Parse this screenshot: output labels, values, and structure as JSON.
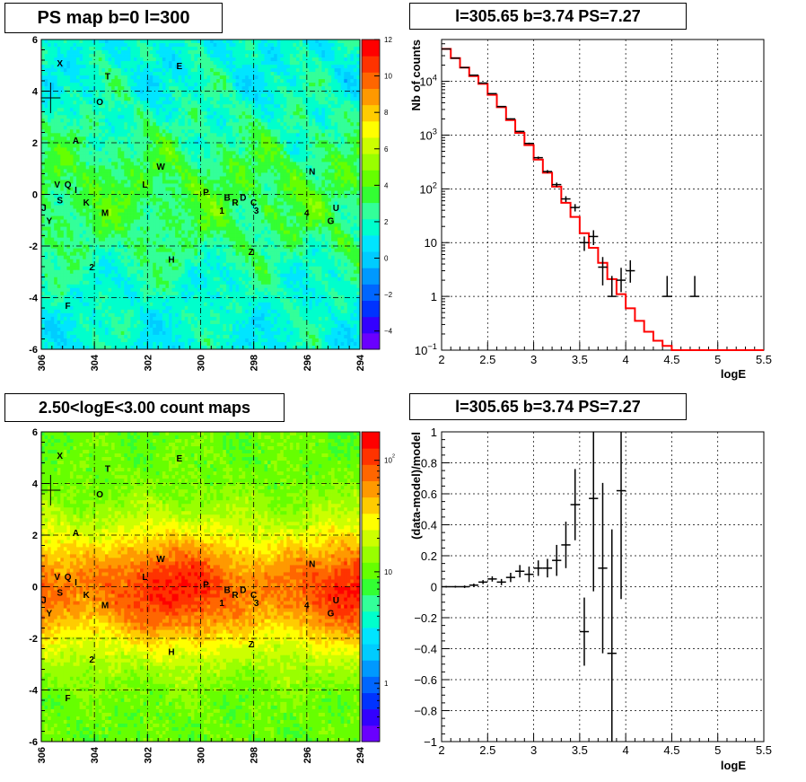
{
  "chart_data": [
    {
      "type": "heatmap",
      "title": "PS map b=0 l=300",
      "xlim": [
        306,
        294
      ],
      "ylim": [
        -6,
        6
      ],
      "x_ticks": [
        "306",
        "304",
        "302",
        "300",
        "298",
        "296",
        "294"
      ],
      "y_ticks": [
        "6",
        "4",
        "2",
        "0",
        "-2",
        "-4",
        "-6"
      ],
      "colorbar": {
        "range": [
          -5,
          12
        ],
        "scale": "linear",
        "ticks": [
          "12",
          "10",
          "8",
          "6",
          "4",
          "2",
          "0",
          "-2",
          "-4"
        ],
        "palette": [
          "#6a00ff",
          "#3300ff",
          "#0033ff",
          "#0066ff",
          "#0099ff",
          "#00ccff",
          "#00e5ff",
          "#00ffcc",
          "#33ff99",
          "#33ff33",
          "#66ff00",
          "#99ff00",
          "#ccff00",
          "#ffff00",
          "#ffcc00",
          "#ff9900",
          "#ff6600",
          "#ff3300",
          "#ff0000"
        ]
      },
      "grid": true,
      "marker_cross": {
        "l": 305.65,
        "b": 3.74
      },
      "sources": [
        {
          "label": "X",
          "l": 305.3,
          "b": 5.1
        },
        {
          "label": "E",
          "l": 300.8,
          "b": 5.0
        },
        {
          "label": "T",
          "l": 303.5,
          "b": 4.6
        },
        {
          "label": "O",
          "l": 303.8,
          "b": 3.6
        },
        {
          "label": "A",
          "l": 304.7,
          "b": 2.1
        },
        {
          "label": "W",
          "l": 301.5,
          "b": 1.1
        },
        {
          "label": "N",
          "l": 295.8,
          "b": 0.9
        },
        {
          "label": "L",
          "l": 302.1,
          "b": 0.4
        },
        {
          "label": "V",
          "l": 305.4,
          "b": 0.4
        },
        {
          "label": "Q",
          "l": 305.0,
          "b": 0.4
        },
        {
          "label": "I",
          "l": 304.7,
          "b": 0.2
        },
        {
          "label": "P",
          "l": 299.8,
          "b": 0.1
        },
        {
          "label": "B",
          "l": 299.0,
          "b": -0.1
        },
        {
          "label": "R",
          "l": 298.7,
          "b": -0.3
        },
        {
          "label": "D",
          "l": 298.4,
          "b": -0.1
        },
        {
          "label": "C",
          "l": 298.0,
          "b": -0.3
        },
        {
          "label": "S",
          "l": 305.3,
          "b": -0.2
        },
        {
          "label": "K",
          "l": 304.3,
          "b": -0.3
        },
        {
          "label": "J",
          "l": 305.9,
          "b": -0.5
        },
        {
          "label": "1",
          "l": 299.2,
          "b": -0.6
        },
        {
          "label": "3",
          "l": 297.9,
          "b": -0.6
        },
        {
          "label": "U",
          "l": 294.9,
          "b": -0.5
        },
        {
          "label": "M",
          "l": 303.6,
          "b": -0.7
        },
        {
          "label": "4",
          "l": 296.0,
          "b": -0.7
        },
        {
          "label": "Y",
          "l": 305.7,
          "b": -1.0
        },
        {
          "label": "G",
          "l": 295.1,
          "b": -1.0
        },
        {
          "label": "Z",
          "l": 298.1,
          "b": -2.2
        },
        {
          "label": "H",
          "l": 301.1,
          "b": -2.5
        },
        {
          "label": "2",
          "l": 304.1,
          "b": -2.8
        },
        {
          "label": "F",
          "l": 305.0,
          "b": -4.3
        }
      ]
    },
    {
      "type": "line",
      "title": "l=305.65 b=3.74 PS=7.27",
      "xlabel": "logE",
      "ylabel": "Nb of counts",
      "xlim": [
        2,
        5.5
      ],
      "ylim": [
        0.1,
        60000
      ],
      "y_scale": "log",
      "x_ticks": [
        "2",
        "2.5",
        "3",
        "3.5",
        "4",
        "4.5",
        "5",
        "5.5"
      ],
      "y_ticks": [
        {
          "v": 0.1,
          "base": "10",
          "exp": "−1"
        },
        {
          "v": 1,
          "base": "1",
          "exp": ""
        },
        {
          "v": 10,
          "base": "10",
          "exp": ""
        },
        {
          "v": 100,
          "base": "10",
          "exp": "2"
        },
        {
          "v": 1000,
          "base": "10",
          "exp": "3"
        },
        {
          "v": 10000,
          "base": "10",
          "exp": "4"
        }
      ],
      "grid": true,
      "bin_width": 0.1,
      "series": [
        {
          "kind": "model-histogram",
          "color": "#ff0000",
          "x": [
            2.0,
            2.1,
            2.2,
            2.3,
            2.4,
            2.5,
            2.6,
            2.7,
            2.8,
            2.9,
            3.0,
            3.1,
            3.2,
            3.3,
            3.4,
            3.5,
            3.6,
            3.7,
            3.8,
            3.9,
            4.0,
            4.1,
            4.2,
            4.3,
            4.4,
            4.5,
            4.6,
            4.7,
            4.8,
            4.9,
            5.0,
            5.1,
            5.2,
            5.3,
            5.4
          ],
          "values": [
            40000,
            27000,
            18000,
            12500,
            9000,
            5600,
            3300,
            1900,
            1100,
            650,
            350,
            200,
            110,
            55,
            30,
            15,
            8,
            4.2,
            2.1,
            1.1,
            0.6,
            0.35,
            0.22,
            0.15,
            0.12,
            0.1,
            0.1,
            0.1,
            0.1,
            0.1,
            0.1,
            0.1,
            0.1,
            0.1,
            0.1
          ]
        },
        {
          "kind": "data-points",
          "color": "#000000",
          "x": [
            2.05,
            2.15,
            2.25,
            2.35,
            2.45,
            2.55,
            2.65,
            2.75,
            2.85,
            2.95,
            3.05,
            3.15,
            3.25,
            3.35,
            3.45,
            3.55,
            3.65,
            3.75,
            3.85,
            3.95,
            4.05,
            4.45,
            4.75
          ],
          "values": [
            40000,
            27000,
            18000,
            13000,
            9300,
            5900,
            3400,
            2000,
            1170,
            700,
            380,
            210,
            120,
            65,
            45,
            10,
            13,
            3.5,
            1,
            2,
            3,
            1,
            1
          ],
          "err_low": [
            39800,
            26840,
            17870,
            12890,
            9200,
            5820,
            3340,
            1955,
            1136,
            675,
            361,
            196,
            109,
            57,
            38,
            7,
            9,
            1.6,
            1,
            1.2,
            1.8,
            1,
            1
          ],
          "err_high": [
            40200,
            27160,
            18130,
            13110,
            9400,
            5980,
            3460,
            2045,
            1204,
            725,
            399,
            224,
            131,
            73,
            52,
            13,
            17,
            5.4,
            2.4,
            3.4,
            4.7,
            2.4,
            2.4
          ]
        }
      ]
    },
    {
      "type": "heatmap",
      "title": "2.50<logE<3.00 count maps",
      "xlim": [
        306,
        294
      ],
      "ylim": [
        -6,
        6
      ],
      "x_ticks": [
        "306",
        "304",
        "302",
        "300",
        "298",
        "296",
        "294"
      ],
      "y_ticks": [
        "6",
        "4",
        "2",
        "0",
        "-2",
        "-4",
        "-6"
      ],
      "colorbar": {
        "range": [
          0.3,
          180
        ],
        "scale": "log",
        "ticks": [
          {
            "v": 100,
            "base": "10",
            "exp": "2"
          },
          {
            "v": 10,
            "base": "10",
            "exp": ""
          },
          {
            "v": 1,
            "base": "1",
            "exp": ""
          }
        ],
        "palette": [
          "#6a00ff",
          "#3300ff",
          "#0033ff",
          "#0066ff",
          "#0099ff",
          "#00ccff",
          "#00e5ff",
          "#00ffcc",
          "#33ff99",
          "#33ff33",
          "#66ff00",
          "#99ff00",
          "#ccff00",
          "#ffff00",
          "#ffcc00",
          "#ff9900",
          "#ff6600",
          "#ff3300",
          "#ff0000"
        ]
      },
      "grid": true,
      "marker_cross": {
        "l": 305.65,
        "b": 3.74
      },
      "sources": "same as panel 1"
    },
    {
      "type": "scatter",
      "title": "l=305.65 b=3.74 PS=7.27",
      "xlabel": "logE",
      "ylabel": "(data-model)/model",
      "xlim": [
        2,
        5.5
      ],
      "ylim": [
        -1,
        1
      ],
      "x_ticks": [
        "2",
        "2.5",
        "3",
        "3.5",
        "4",
        "4.5",
        "5",
        "5.5"
      ],
      "y_ticks": [
        "1",
        "0.8",
        "0.6",
        "0.4",
        "0.2",
        "0",
        "−0.2",
        "−0.4",
        "−0.6",
        "−0.8",
        "−1"
      ],
      "grid": true,
      "bin_width": 0.1,
      "series": [
        {
          "kind": "residuals",
          "color": "#000000",
          "x": [
            2.05,
            2.15,
            2.25,
            2.35,
            2.45,
            2.55,
            2.65,
            2.75,
            2.85,
            2.95,
            3.05,
            3.15,
            3.25,
            3.35,
            3.45,
            3.55,
            3.65,
            3.75,
            3.85,
            3.95
          ],
          "values": [
            0.0,
            0.0,
            0.0,
            0.01,
            0.03,
            0.05,
            0.03,
            0.06,
            0.1,
            0.08,
            0.12,
            0.12,
            0.17,
            0.27,
            0.53,
            -0.29,
            0.57,
            0.12,
            -0.43,
            0.62
          ],
          "err": [
            0.005,
            0.006,
            0.008,
            0.01,
            0.013,
            0.017,
            0.02,
            0.03,
            0.04,
            0.05,
            0.05,
            0.06,
            0.1,
            0.15,
            0.23,
            0.22,
            0.6,
            0.55,
            0.8,
            0.7
          ]
        }
      ]
    }
  ]
}
